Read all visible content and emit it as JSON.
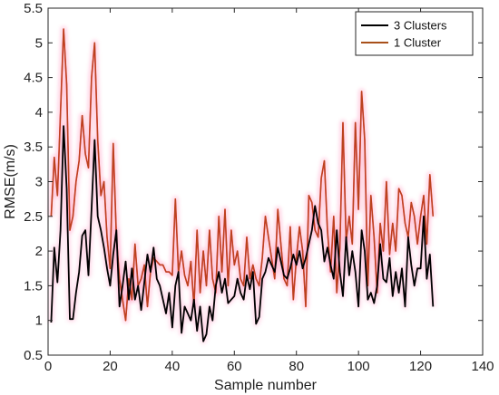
{
  "chart_data": {
    "type": "line",
    "title": "",
    "xlabel": "Sample number",
    "ylabel": "RMSE(m/s)",
    "xlim": [
      0,
      140
    ],
    "ylim": [
      0.5,
      5.5
    ],
    "xticks": [
      0,
      20,
      40,
      60,
      80,
      100,
      120,
      140
    ],
    "yticks": [
      0.5,
      1,
      1.5,
      2,
      2.5,
      3,
      3.5,
      4,
      4.5,
      5,
      5.5
    ],
    "grid": false,
    "legend": {
      "position": "top-right",
      "entries": [
        "3 Clusters",
        "1 Cluster"
      ]
    },
    "series": [
      {
        "name": "3 Clusters",
        "color": "#000000",
        "x": [
          1,
          2,
          3,
          4,
          5,
          6,
          7,
          8,
          9,
          10,
          11,
          12,
          13,
          14,
          15,
          16,
          17,
          18,
          19,
          20,
          21,
          22,
          23,
          24,
          25,
          26,
          27,
          28,
          29,
          30,
          31,
          32,
          33,
          34,
          35,
          36,
          37,
          38,
          39,
          40,
          41,
          42,
          43,
          44,
          45,
          46,
          47,
          48,
          49,
          50,
          51,
          52,
          53,
          54,
          55,
          56,
          57,
          58,
          59,
          60,
          61,
          62,
          63,
          64,
          65,
          66,
          67,
          68,
          69,
          70,
          71,
          72,
          73,
          74,
          75,
          76,
          77,
          78,
          79,
          80,
          81,
          82,
          83,
          84,
          85,
          86,
          87,
          88,
          89,
          90,
          91,
          92,
          93,
          94,
          95,
          96,
          97,
          98,
          99,
          100,
          101,
          102,
          103,
          104,
          105,
          106,
          107,
          108,
          109,
          110,
          111,
          112,
          113,
          114,
          115,
          116,
          117,
          118,
          119,
          120,
          121,
          122,
          123,
          124
        ],
        "values": [
          0.97,
          2.05,
          1.55,
          2.3,
          3.8,
          2.9,
          1.02,
          1.02,
          1.4,
          1.7,
          2.22,
          2.3,
          1.65,
          2.6,
          3.6,
          2.5,
          2.3,
          2.05,
          1.75,
          1.5,
          1.95,
          2.3,
          1.2,
          1.5,
          1.85,
          1.3,
          1.75,
          1.3,
          1.5,
          1.15,
          1.55,
          1.95,
          1.7,
          2.05,
          1.6,
          1.5,
          1.3,
          1.1,
          1.4,
          0.9,
          1.5,
          1.7,
          0.82,
          1.2,
          1.1,
          1.0,
          1.3,
          0.85,
          1.2,
          0.7,
          0.8,
          1.2,
          1.0,
          1.5,
          1.7,
          1.4,
          1.6,
          1.25,
          1.3,
          1.35,
          1.6,
          1.4,
          1.3,
          1.65,
          1.45,
          1.7,
          0.95,
          1.05,
          1.6,
          1.7,
          1.9,
          1.8,
          1.7,
          2.05,
          1.85,
          1.65,
          1.6,
          1.75,
          1.95,
          1.8,
          2.0,
          1.75,
          1.9,
          2.1,
          2.3,
          2.65,
          2.4,
          2.3,
          1.85,
          2.05,
          1.8,
          1.6,
          2.3,
          1.7,
          1.35,
          2.2,
          1.65,
          2.0,
          1.7,
          1.2,
          2.3,
          2.0,
          1.3,
          1.4,
          1.25,
          1.5,
          2.1,
          1.6,
          1.55,
          1.9,
          1.35,
          1.7,
          1.4,
          1.75,
          1.2,
          2.2,
          1.8,
          1.5,
          1.75,
          1.75,
          2.5,
          1.6,
          1.95,
          1.2
        ]
      },
      {
        "name": "1 Cluster",
        "color": "#a8501a",
        "x": [
          1,
          2,
          3,
          4,
          5,
          6,
          7,
          8,
          9,
          10,
          11,
          12,
          13,
          14,
          15,
          16,
          17,
          18,
          19,
          20,
          21,
          22,
          23,
          24,
          25,
          26,
          27,
          28,
          29,
          30,
          31,
          32,
          33,
          34,
          35,
          36,
          37,
          38,
          39,
          40,
          41,
          42,
          43,
          44,
          45,
          46,
          47,
          48,
          49,
          50,
          51,
          52,
          53,
          54,
          55,
          56,
          57,
          58,
          59,
          60,
          61,
          62,
          63,
          64,
          65,
          66,
          67,
          68,
          69,
          70,
          71,
          72,
          73,
          74,
          75,
          76,
          77,
          78,
          79,
          80,
          81,
          82,
          83,
          84,
          85,
          86,
          87,
          88,
          89,
          90,
          91,
          92,
          93,
          94,
          95,
          96,
          97,
          98,
          99,
          100,
          101,
          102,
          103,
          104,
          105,
          106,
          107,
          108,
          109,
          110,
          111,
          112,
          113,
          114,
          115,
          116,
          117,
          118,
          119,
          120,
          121,
          122,
          123,
          124
        ],
        "values": [
          2.5,
          3.35,
          2.8,
          4.0,
          5.2,
          4.4,
          2.3,
          2.5,
          3.0,
          3.3,
          3.95,
          3.4,
          3.2,
          4.5,
          5.0,
          3.6,
          2.8,
          3.0,
          2.2,
          1.75,
          3.55,
          2.2,
          1.6,
          1.3,
          1.0,
          1.6,
          1.3,
          2.1,
          1.5,
          1.6,
          1.8,
          1.2,
          1.7,
          1.9,
          1.85,
          1.8,
          1.8,
          1.7,
          1.7,
          1.65,
          2.75,
          1.7,
          2.0,
          1.65,
          1.5,
          1.85,
          1.2,
          2.3,
          1.4,
          2.0,
          1.5,
          2.3,
          1.6,
          1.4,
          2.5,
          1.7,
          2.6,
          1.5,
          2.3,
          1.8,
          2.0,
          1.6,
          1.5,
          2.2,
          1.6,
          1.8,
          1.6,
          1.5,
          1.9,
          2.5,
          2.2,
          1.9,
          1.6,
          2.6,
          2.1,
          1.6,
          1.5,
          2.35,
          1.3,
          1.9,
          2.35,
          2.0,
          1.2,
          2.8,
          2.7,
          2.3,
          2.2,
          3.05,
          3.3,
          2.3,
          1.7,
          2.5,
          1.4,
          2.05,
          3.85,
          2.15,
          2.5,
          2.1,
          3.85,
          2.6,
          4.3,
          3.6,
          1.5,
          2.8,
          2.2,
          1.4,
          2.4,
          2.0,
          3.0,
          1.95,
          2.4,
          2.0,
          2.9,
          2.8,
          2.4,
          2.2,
          2.7,
          2.5,
          2.1,
          2.5,
          2.8,
          2.1,
          3.1,
          2.5
        ]
      }
    ]
  }
}
